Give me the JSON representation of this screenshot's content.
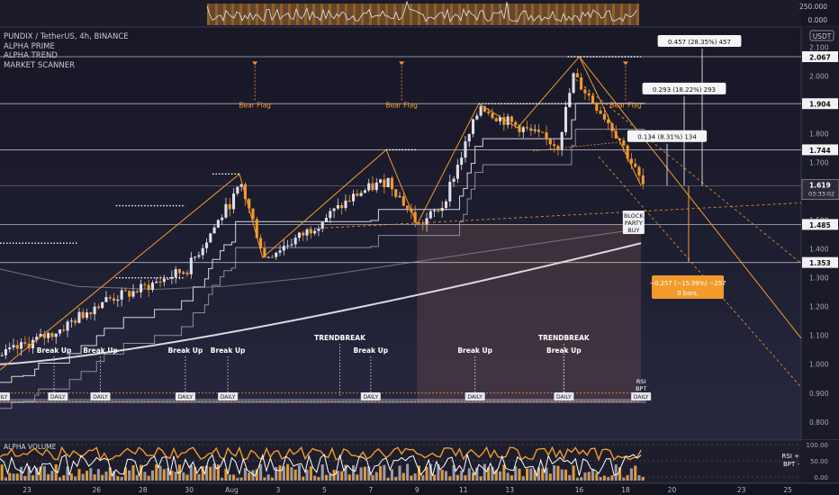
{
  "header": {
    "symbol_line": "PUNDIX / TetherUS, 4h, BINANCE",
    "indicators": [
      "ALPHA PRIME",
      "ALPHA TREND",
      "MARKET SCANNER"
    ],
    "currency_badge": "USDT"
  },
  "top_strip": {
    "axis_labels": [
      "250.000",
      "0.000"
    ]
  },
  "colors": {
    "accent": "#f29b2b",
    "bull": "#e0e0e8",
    "bear": "#f29b2b",
    "line_white": "#ffffff",
    "line_gray": "#9a9aa6",
    "sma": "#d9d9e2",
    "box": "#5a4a4a",
    "measure_box": "#f29b2b"
  },
  "chart_data": {
    "type": "candlestick",
    "y_axis": {
      "range": [
        0.74,
        2.17
      ],
      "ticks": [
        "2.100",
        "2.000",
        "1.900",
        "1.800",
        "1.700",
        "1.600",
        "1.500",
        "1.400",
        "1.300",
        "1.200",
        "1.100",
        "1.000",
        "0.900",
        "0.800"
      ],
      "levels": [
        {
          "value": 2.067,
          "label": "2.067"
        },
        {
          "value": 1.904,
          "label": "1.904"
        },
        {
          "value": 1.744,
          "label": "1.744"
        },
        {
          "value": 1.485,
          "label": "1.485"
        },
        {
          "value": 1.353,
          "label": "1.353"
        }
      ],
      "current_price": {
        "value": 1.619,
        "label": "1.619",
        "countdown": "03:33:02"
      }
    },
    "x_axis": {
      "ticks": [
        {
          "label": "23",
          "bar": 7
        },
        {
          "label": "26",
          "bar": 25
        },
        {
          "label": "28",
          "bar": 37
        },
        {
          "label": "30",
          "bar": 49
        },
        {
          "label": "Aug",
          "bar": 60
        },
        {
          "label": "3",
          "bar": 72
        },
        {
          "label": "5",
          "bar": 84
        },
        {
          "label": "7",
          "bar": 96
        },
        {
          "label": "9",
          "bar": 108
        },
        {
          "label": "11",
          "bar": 120
        },
        {
          "label": "13",
          "bar": 132
        },
        {
          "label": "16",
          "bar": 150
        },
        {
          "label": "18",
          "bar": 162
        },
        {
          "label": "20",
          "bar": 174
        },
        {
          "label": "23",
          "bar": 192
        },
        {
          "label": "25",
          "bar": 204
        }
      ]
    },
    "pattern_labels": [
      {
        "text": "Bear Flag",
        "bar": 66,
        "price": 1.89
      },
      {
        "text": "Bear Flag",
        "bar": 104,
        "price": 1.89
      },
      {
        "text": "Bear Flag",
        "bar": 162,
        "price": 1.89
      }
    ],
    "signals": [
      {
        "text": "Break Up",
        "bar": 14
      },
      {
        "text": "Break Up",
        "bar": 26
      },
      {
        "text": "Break Up",
        "bar": 48
      },
      {
        "text": "Break Up",
        "bar": 59
      },
      {
        "text": "TRENDBREAK",
        "bar": 88,
        "upper": true
      },
      {
        "text": "Break Up",
        "bar": 96
      },
      {
        "text": "Break Up",
        "bar": 123
      },
      {
        "text": "TRENDBREAK",
        "bar": 146,
        "upper": true
      },
      {
        "text": "Break Up",
        "bar": 146
      }
    ],
    "daily_tags": [
      {
        "text": "DAILY",
        "bar": 0
      },
      {
        "text": "DAILY",
        "bar": 15
      },
      {
        "text": "DAILY",
        "bar": 26
      },
      {
        "text": "DAILY",
        "bar": 48
      },
      {
        "text": "DAILY",
        "bar": 59
      },
      {
        "text": "DAILY",
        "bar": 96
      },
      {
        "text": "DAILY",
        "bar": 123
      },
      {
        "text": "DAILY",
        "bar": 146
      },
      {
        "text": "DAILY",
        "bar": 166
      }
    ],
    "rsi_label": {
      "lines": [
        "RSI",
        "BPT"
      ],
      "bar": 166
    },
    "block_party": {
      "lines": [
        "BLOCK",
        "PARTY",
        "BUY"
      ],
      "bar": 165,
      "price": 1.53
    },
    "measurements": [
      {
        "text": "0.457 (28.35%) 457",
        "bar": 180,
        "price": 2.12
      },
      {
        "text": "0.293 (18.22%) 293",
        "bar": 177,
        "price": 1.955
      },
      {
        "text": "0.134 (8.31%) 134",
        "bar": 173,
        "price": 1.79
      }
    ],
    "down_measure": {
      "lines": [
        "−0.257 (−15.99%) −257",
        "0 bars,"
      ]
    },
    "sub_chart": {
      "title": "ALPHA VOLUME",
      "y_ticks": [
        "100.00",
        "50.00",
        "0.00"
      ],
      "right_labels": [
        "RSI +",
        "BPT -"
      ]
    }
  }
}
